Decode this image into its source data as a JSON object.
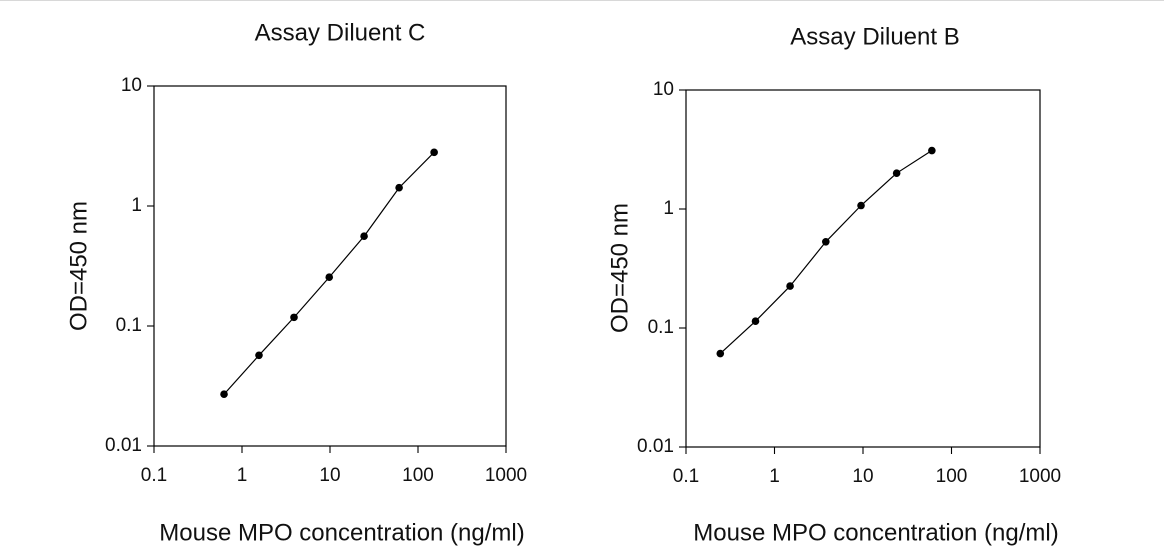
{
  "chart_data": [
    {
      "type": "line",
      "title": "Assay Diluent C",
      "xlabel": "Mouse MPO concentration (ng/ml)",
      "ylabel": "OD=450 nm",
      "x_scale": "log",
      "y_scale": "log",
      "xlim": [
        0.1,
        1000
      ],
      "ylim": [
        0.01,
        10
      ],
      "x_ticks": [
        0.1,
        1,
        10,
        100,
        1000
      ],
      "x_tick_labels": [
        "0.1",
        "1",
        "10",
        "100",
        "1000"
      ],
      "y_ticks": [
        0.01,
        0.1,
        1,
        10
      ],
      "y_tick_labels": [
        "0.01",
        "0.1",
        "1",
        "10"
      ],
      "grid": false,
      "series": [
        {
          "x": [
            0.625,
            1.56,
            3.9,
            9.8,
            24.4,
            61,
            152.5
          ],
          "y": [
            0.027,
            0.057,
            0.118,
            0.255,
            0.56,
            1.42,
            2.8
          ]
        }
      ]
    },
    {
      "type": "line",
      "title": "Assay Diluent B",
      "xlabel": "Mouse MPO concentration (ng/ml)",
      "ylabel": "OD=450 nm",
      "x_scale": "log",
      "y_scale": "log",
      "xlim": [
        0.1,
        1000
      ],
      "ylim": [
        0.01,
        10
      ],
      "x_ticks": [
        0.1,
        1,
        10,
        100,
        1000
      ],
      "x_tick_labels": [
        "0.1",
        "1",
        "10",
        "100",
        "1000"
      ],
      "y_ticks": [
        0.01,
        0.1,
        1,
        10
      ],
      "y_tick_labels": [
        "0.01",
        "0.1",
        "1",
        "10"
      ],
      "grid": false,
      "series": [
        {
          "x": [
            0.244,
            0.61,
            1.5,
            3.8,
            9.5,
            24,
            60
          ],
          "y": [
            0.061,
            0.114,
            0.225,
            0.53,
            1.07,
            2.0,
            3.1
          ]
        }
      ]
    }
  ]
}
